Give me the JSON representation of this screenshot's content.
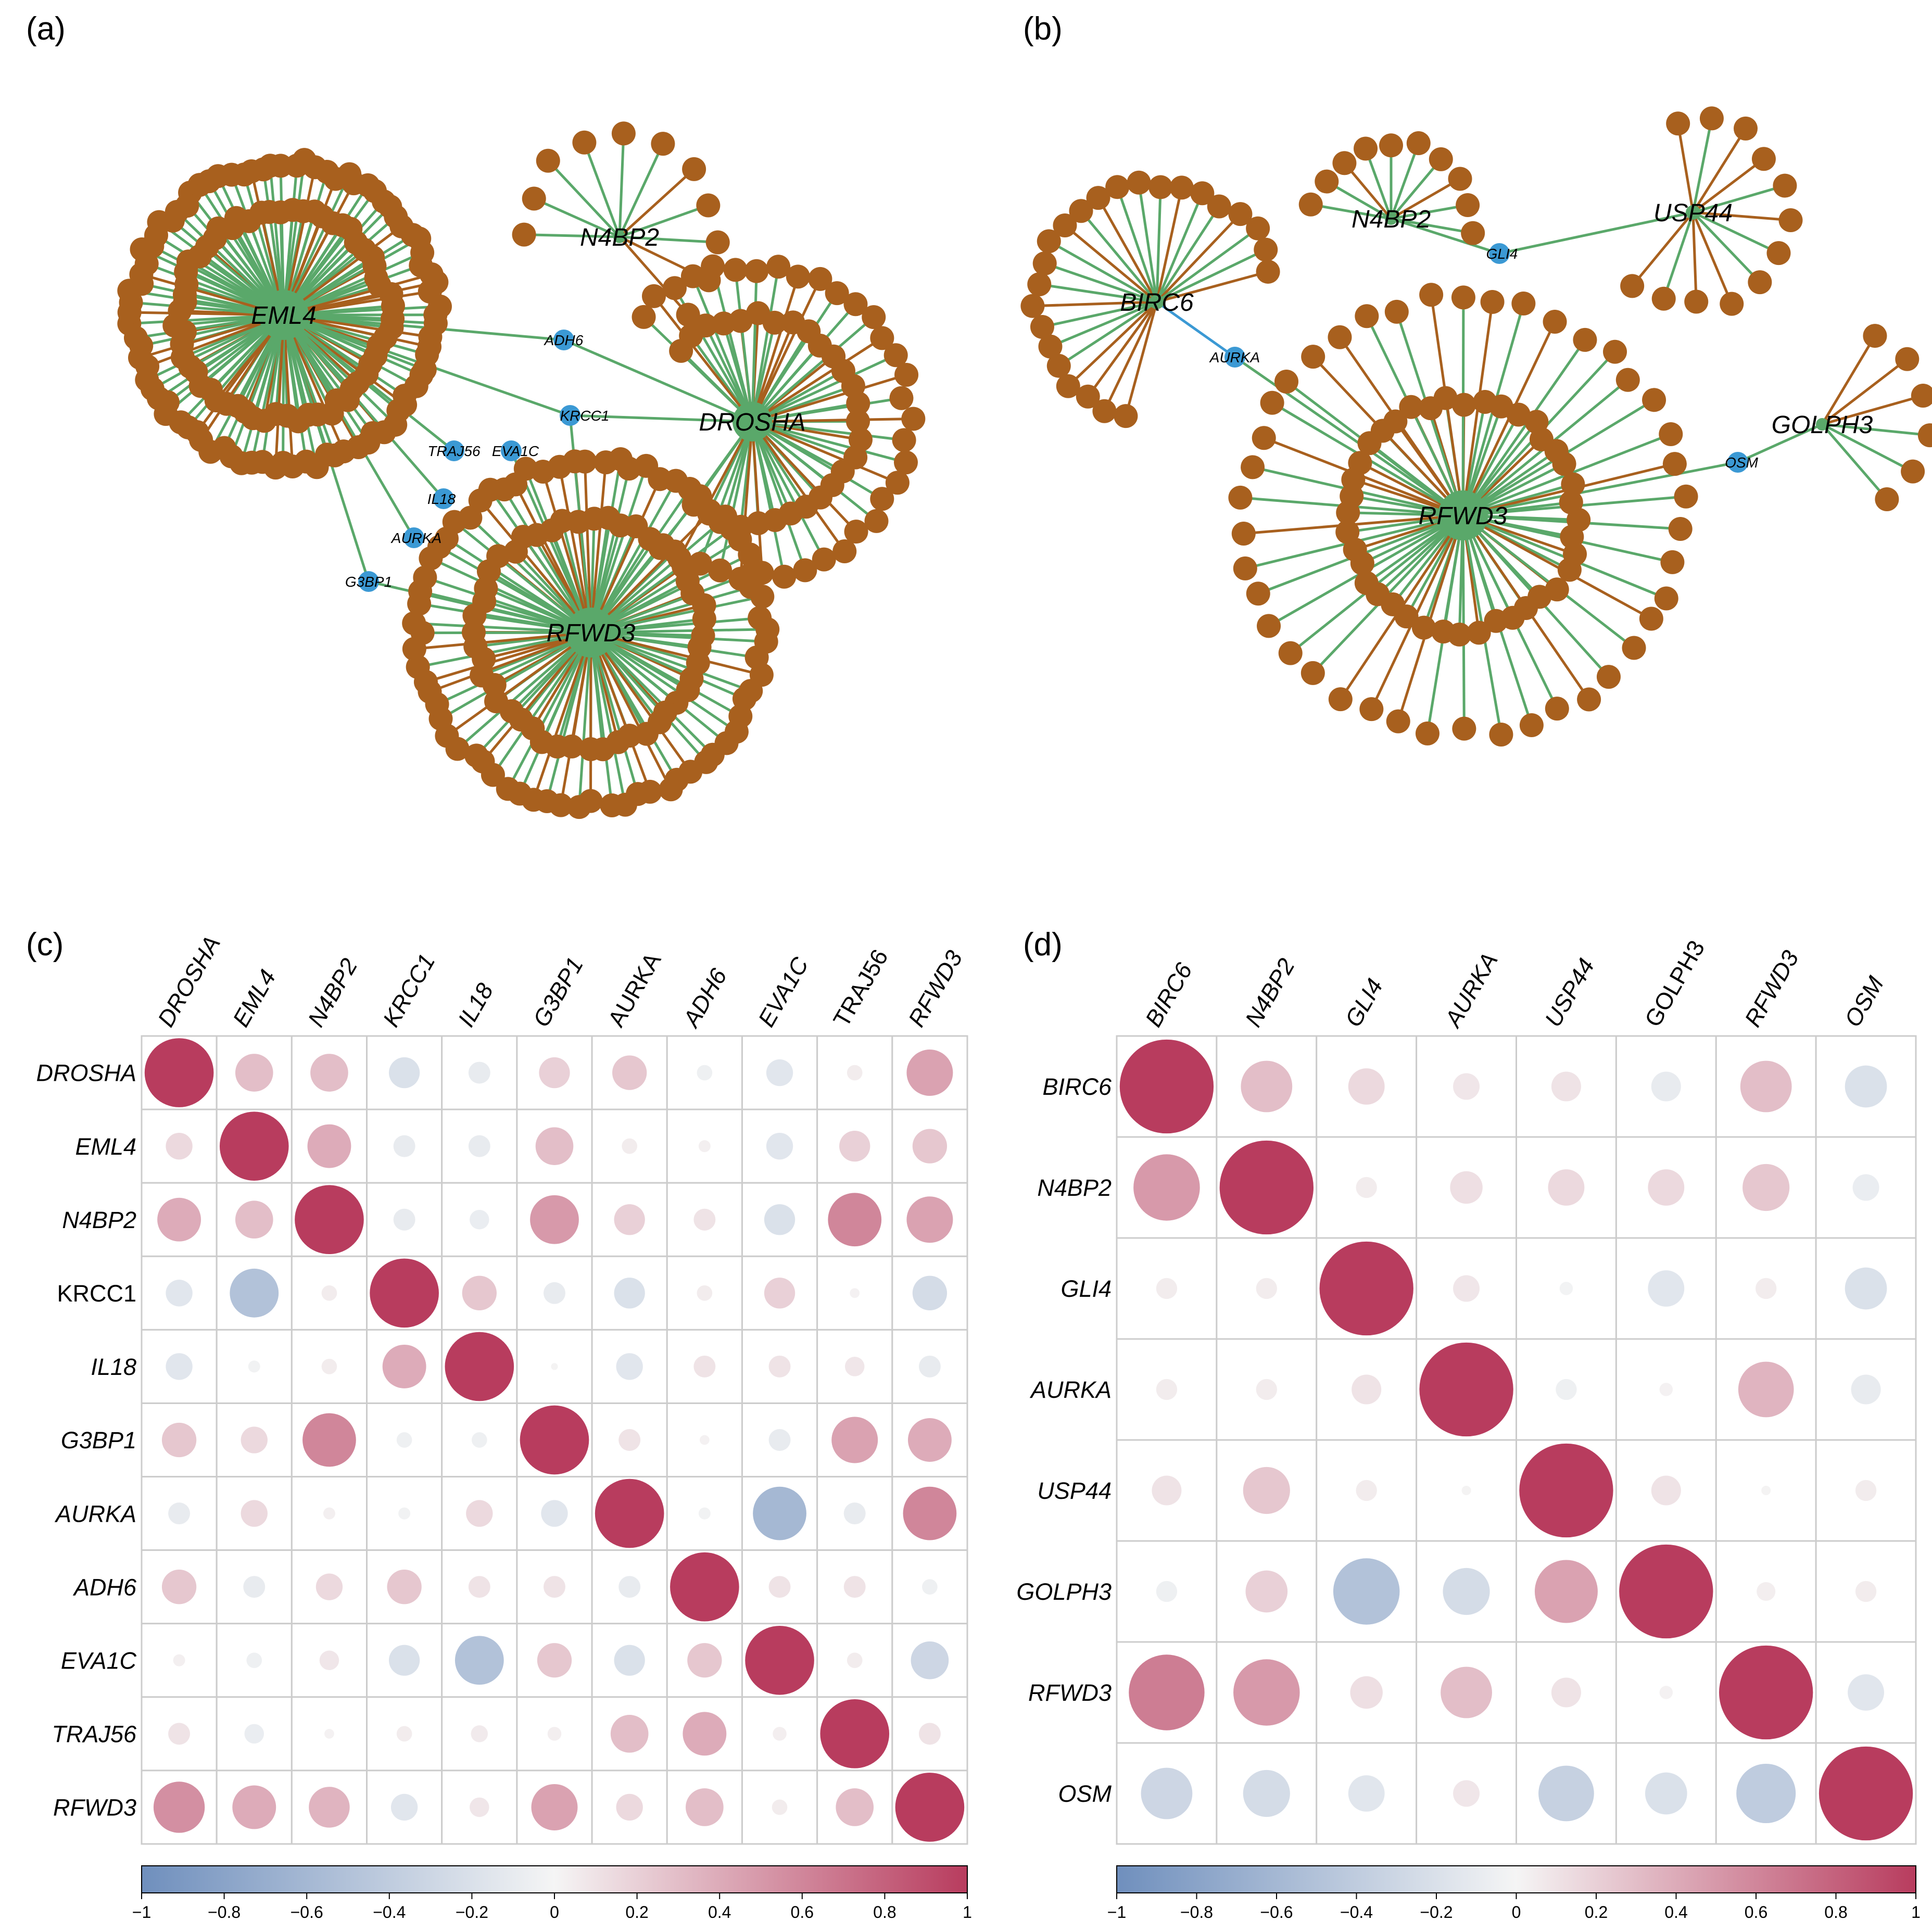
{
  "panels": {
    "a": {
      "label": "(a)",
      "hubs": [
        {
          "id": "EML4",
          "n": 150
        },
        {
          "id": "N4BP2",
          "n": 11
        },
        {
          "id": "DROSHA",
          "n": 62
        },
        {
          "id": "RFWD3",
          "n": 120
        }
      ],
      "connectors": [
        "ADH6",
        "KRCC1",
        "TRAJ56",
        "EVA1C",
        "IL18",
        "AURKA",
        "G3BP1"
      ]
    },
    "b": {
      "label": "(b)",
      "hubs": [
        {
          "id": "BIRC6",
          "n": 24
        },
        {
          "id": "N4BP2",
          "n": 10
        },
        {
          "id": "USP44",
          "n": 12
        },
        {
          "id": "RFWD3",
          "n": 82
        },
        {
          "id": "GOLPH3",
          "n": 6
        }
      ],
      "connectors": [
        "GLI4",
        "AURKA",
        "OSM"
      ]
    },
    "c": {
      "label": "(c)",
      "genes": [
        "DROSHA",
        "EML4",
        "N4BP2",
        "KRCC1",
        "IL18",
        "G3BP1",
        "AURKA",
        "ADH6",
        "EVA1C",
        "TRAJ56",
        "RFWD3"
      ],
      "italic_row": [
        true,
        true,
        true,
        false,
        true,
        true,
        true,
        true,
        true,
        true,
        true
      ],
      "italic_col": [
        true,
        true,
        true,
        true,
        true,
        true,
        false,
        true,
        true,
        false,
        true
      ],
      "matrix": [
        [
          1.0,
          0.3,
          0.3,
          -0.2,
          -0.1,
          0.2,
          0.25,
          -0.05,
          -0.15,
          0.05,
          0.45
        ],
        [
          0.15,
          1.0,
          0.4,
          -0.1,
          -0.1,
          0.3,
          0.05,
          0.03,
          -0.15,
          0.2,
          0.25
        ],
        [
          0.4,
          0.3,
          1.0,
          -0.1,
          -0.08,
          0.5,
          0.2,
          0.1,
          -0.2,
          0.6,
          0.45
        ],
        [
          -0.15,
          -0.5,
          0.05,
          1.0,
          0.25,
          -0.1,
          -0.2,
          0.05,
          0.2,
          0.02,
          -0.25
        ],
        [
          -0.15,
          -0.03,
          0.05,
          0.4,
          1.0,
          0.01,
          -0.15,
          0.1,
          0.1,
          0.08,
          -0.1
        ],
        [
          0.25,
          0.15,
          0.6,
          -0.05,
          -0.05,
          1.0,
          0.1,
          0.02,
          -0.1,
          0.45,
          0.4
        ],
        [
          -0.1,
          0.15,
          0.03,
          -0.03,
          0.15,
          -0.15,
          1.0,
          -0.03,
          -0.6,
          -0.1,
          0.6
        ],
        [
          0.25,
          -0.1,
          0.15,
          0.25,
          0.1,
          0.1,
          -0.1,
          1.0,
          0.1,
          0.1,
          -0.05
        ],
        [
          0.03,
          -0.05,
          0.08,
          -0.2,
          -0.5,
          0.25,
          -0.2,
          0.25,
          1.0,
          0.05,
          -0.3
        ],
        [
          0.1,
          -0.08,
          0.02,
          0.05,
          0.06,
          0.04,
          0.3,
          0.4,
          0.04,
          1.0,
          0.1
        ],
        [
          0.55,
          0.4,
          0.35,
          -0.15,
          0.08,
          0.45,
          0.15,
          0.3,
          0.05,
          0.3,
          1.0
        ]
      ],
      "colorbar_ticks": [
        "−1",
        "−0.8",
        "−0.6",
        "−0.4",
        "−0.2",
        "0",
        "0.2",
        "0.4",
        "0.6",
        "0.8",
        "1"
      ]
    },
    "d": {
      "label": "(d)",
      "genes": [
        "BIRC6",
        "N4BP2",
        "GLI4",
        "AURKA",
        "USP44",
        "GOLPH3",
        "RFWD3",
        "OSM"
      ],
      "italic_row": [
        true,
        true,
        true,
        true,
        true,
        true,
        true,
        true
      ],
      "italic_col": [
        true,
        true,
        true,
        true,
        true,
        false,
        true,
        true
      ],
      "matrix": [
        [
          1.0,
          0.3,
          0.15,
          0.08,
          0.1,
          -0.1,
          0.3,
          -0.2
        ],
        [
          0.5,
          1.0,
          0.05,
          0.12,
          0.15,
          0.15,
          0.25,
          -0.08
        ],
        [
          0.05,
          0.05,
          1.0,
          0.08,
          -0.02,
          -0.15,
          0.05,
          -0.2
        ],
        [
          0.05,
          0.05,
          0.1,
          1.0,
          -0.05,
          0.02,
          0.35,
          -0.1
        ],
        [
          0.1,
          0.25,
          0.05,
          0.01,
          1.0,
          0.1,
          0.01,
          0.05
        ],
        [
          -0.05,
          0.2,
          -0.5,
          -0.25,
          0.45,
          1.0,
          0.04,
          0.05
        ],
        [
          0.65,
          0.5,
          0.12,
          0.3,
          0.1,
          0.02,
          1.0,
          -0.15
        ],
        [
          -0.3,
          -0.25,
          -0.15,
          0.08,
          -0.35,
          -0.2,
          -0.4,
          1.0
        ]
      ],
      "colorbar_ticks": [
        "−1",
        "−0.8",
        "−0.6",
        "−0.4",
        "−0.2",
        "0",
        "0.2",
        "0.4",
        "0.6",
        "0.8",
        "1"
      ]
    }
  },
  "colors": {
    "hub": "#5aa86a",
    "target": "#a8601e",
    "connector": "#3b99d4",
    "edge_green": "#5aa86a",
    "edge_brown": "#a8601e",
    "corr_neg": "#6f8fbd",
    "corr_zero": "#f5f5f5",
    "corr_pos": "#b83c5e",
    "grid": "#cccccc"
  }
}
